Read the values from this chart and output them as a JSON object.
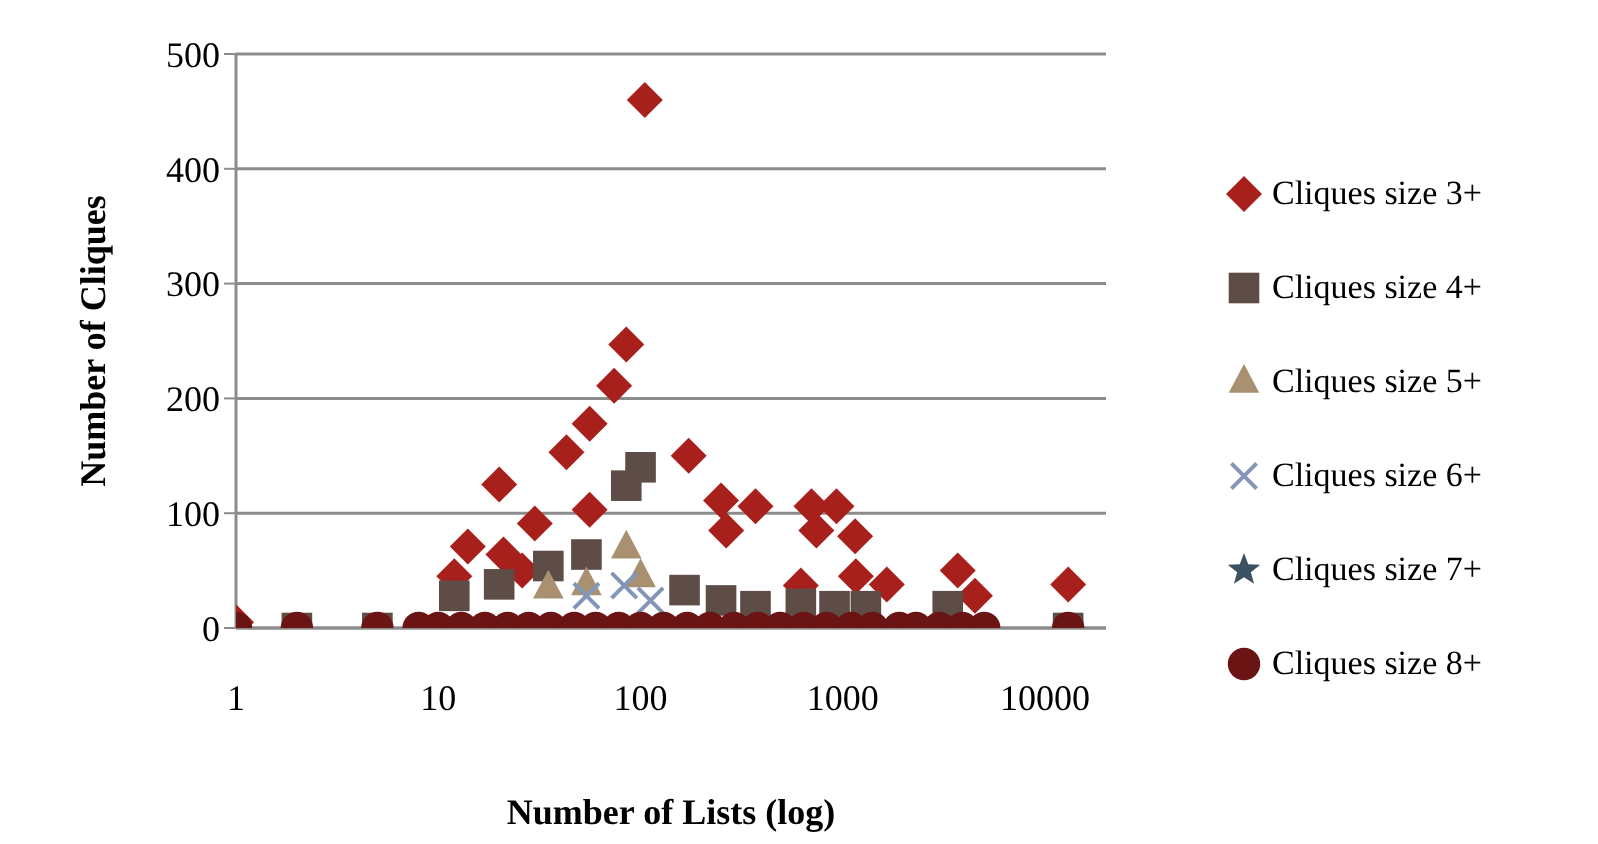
{
  "chart_data": {
    "type": "scatter",
    "xlabel": "Number of Lists (log)",
    "ylabel": "Number of Cliques",
    "log": "x",
    "xlim": [
      1,
      20000
    ],
    "xticks": [
      1,
      10,
      100,
      1000,
      10000
    ],
    "ylim": [
      0,
      500
    ],
    "yticks": [
      0,
      100,
      200,
      300,
      400,
      500
    ],
    "grid": "y",
    "legend": "right",
    "series": [
      {
        "name": "Cliques size 3+",
        "color": "#a8201c",
        "marker": "diamond",
        "x": [
          1,
          12,
          14,
          20,
          21,
          26,
          30,
          43,
          56,
          56,
          74,
          85,
          105,
          173,
          250,
          265,
          370,
          620,
          700,
          740,
          930,
          1150,
          1160,
          1650,
          3700,
          4500,
          13000
        ],
        "values": [
          5,
          45,
          71,
          125,
          64,
          50,
          91,
          153,
          178,
          103,
          211,
          247,
          460,
          150,
          111,
          85,
          106,
          37,
          106,
          85,
          106,
          80,
          45,
          38,
          50,
          28,
          38
        ]
      },
      {
        "name": "Cliques size 4+",
        "color": "#5e4d47",
        "marker": "square",
        "x": [
          2,
          5,
          12,
          20,
          35,
          54,
          85,
          100,
          165,
          250,
          370,
          620,
          910,
          1300,
          3300,
          13000
        ],
        "values": [
          0,
          0,
          28,
          38,
          54,
          64,
          124,
          140,
          33,
          24,
          19,
          21,
          19,
          19,
          19,
          0
        ]
      },
      {
        "name": "Cliques size 5+",
        "color": "#a89070",
        "marker": "triangle",
        "x": [
          35,
          54,
          85,
          100
        ],
        "values": [
          35,
          38,
          70,
          45
        ]
      },
      {
        "name": "Cliques size 6+",
        "color": "#8496b8",
        "marker": "cross",
        "x": [
          54,
          83,
          112
        ],
        "values": [
          28,
          37,
          24
        ]
      },
      {
        "name": "Cliques size 7+",
        "color": "#3b5060",
        "marker": "star"
      },
      {
        "name": "Cliques size 8+",
        "color": "#6b1414",
        "marker": "circle",
        "x": [
          1,
          2,
          5,
          8,
          10,
          13,
          17,
          22,
          28,
          36,
          47,
          60,
          78,
          100,
          130,
          170,
          220,
          290,
          380,
          490,
          640,
          830,
          1100,
          1400,
          1900,
          2300,
          3000,
          3900,
          5000,
          13000
        ],
        "values": [
          0,
          0,
          0,
          0,
          0,
          0,
          0,
          0,
          0,
          0,
          0,
          0,
          0,
          0,
          0,
          0,
          0,
          0,
          0,
          0,
          0,
          0,
          0,
          0,
          0,
          0,
          0,
          0,
          0,
          0
        ]
      }
    ]
  }
}
